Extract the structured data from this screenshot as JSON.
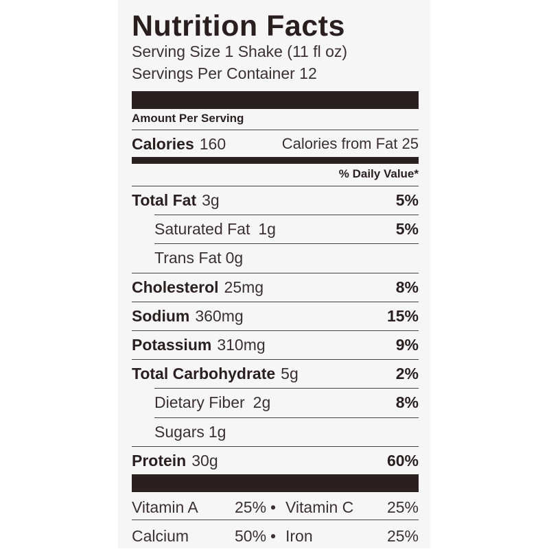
{
  "title": "Nutrition Facts",
  "serving_size": "Serving Size 1 Shake (11 fl oz)",
  "servings_per_container": "Servings Per Container 12",
  "amount_per_serving": "Amount Per Serving",
  "calories": {
    "label": "Calories",
    "value": "160",
    "from_fat": "Calories from Fat 25"
  },
  "daily_value_header": "% Daily Value*",
  "nutrients": [
    {
      "name": "Total Fat",
      "amount": "3g",
      "dv": "5%"
    },
    {
      "name": "Saturated Fat",
      "amount": "1g",
      "dv": "5%"
    },
    {
      "name": "Trans Fat",
      "amount": "0g",
      "dv": ""
    },
    {
      "name": "Cholesterol",
      "amount": "25mg",
      "dv": "8%"
    },
    {
      "name": "Sodium",
      "amount": "360mg",
      "dv": "15%"
    },
    {
      "name": "Potassium",
      "amount": "310mg",
      "dv": "9%"
    },
    {
      "name": "Total Carbohydrate",
      "amount": "5g",
      "dv": "2%"
    },
    {
      "name": "Dietary Fiber",
      "amount": "2g",
      "dv": "8%"
    },
    {
      "name": "Sugars",
      "amount": "1g",
      "dv": ""
    },
    {
      "name": "Protein",
      "amount": "30g",
      "dv": "60%"
    }
  ],
  "vitamins": [
    {
      "left_name": "Vitamin A",
      "left_pct": "25%",
      "right_name": "Vitamin C",
      "right_pct": "25%"
    },
    {
      "left_name": "Calcium",
      "left_pct": "50%",
      "right_name": "Iron",
      "right_pct": "25%"
    }
  ],
  "bullet": "•"
}
